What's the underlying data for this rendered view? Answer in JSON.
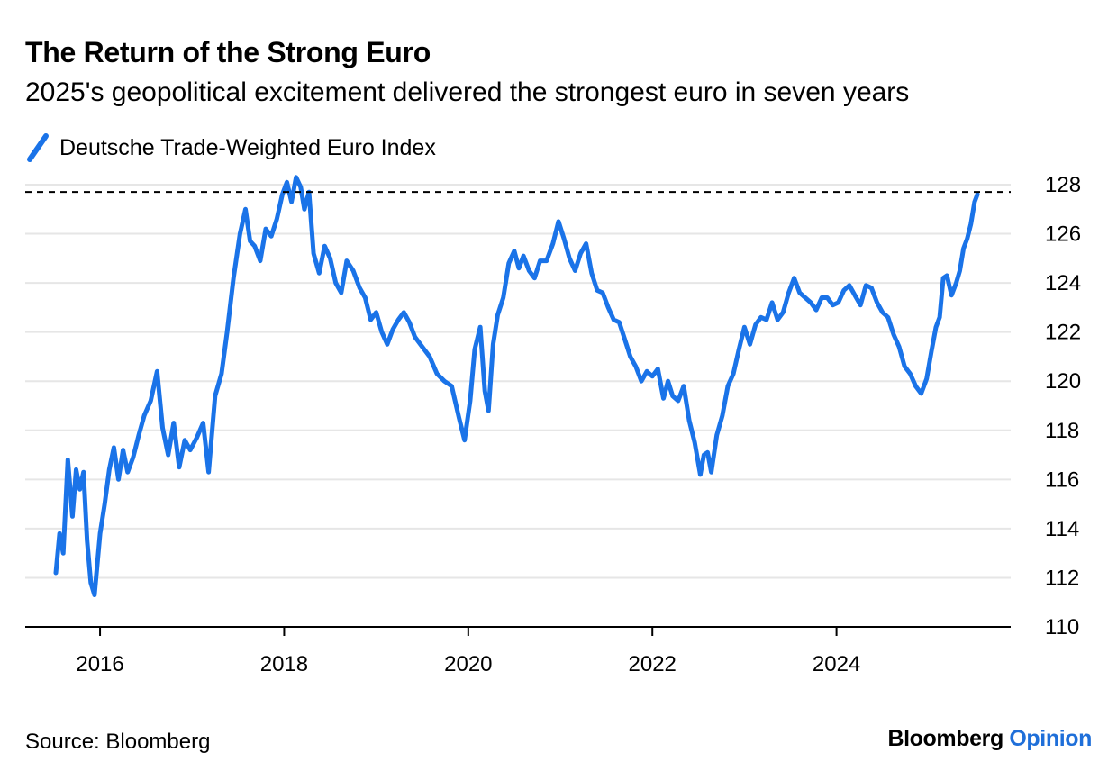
{
  "title": "The Return of the Strong Euro",
  "subtitle": "2025's geopolitical excitement delivered the strongest euro in seven years",
  "legend": {
    "label": "Deutsche Trade-Weighted Euro Index"
  },
  "source": "Source: Bloomberg",
  "brand": {
    "name": "Bloomberg",
    "suffix": "Opinion"
  },
  "colors": {
    "series": "#1a73e8",
    "brand_accent": "#1f6fd9",
    "reference_line": "#000000",
    "grid": "#e6e6e6"
  },
  "chart_data": {
    "type": "line",
    "title": "The Return of the Strong Euro",
    "subtitle": "2025's geopolitical excitement delivered the strongest euro in seven years",
    "xlabel": "",
    "ylabel": "",
    "xlim": [
      2015.52,
      2025.55
    ],
    "ylim": [
      110,
      128
    ],
    "x_ticks": [
      2016,
      2018,
      2020,
      2022,
      2024
    ],
    "x_tick_labels": [
      "2016",
      "2018",
      "2020",
      "2022",
      "2024"
    ],
    "y_ticks": [
      110,
      112,
      114,
      116,
      118,
      120,
      122,
      124,
      126,
      128
    ],
    "y_tick_labels": [
      "110",
      "112",
      "114",
      "116",
      "118",
      "120",
      "122",
      "124",
      "126",
      "128"
    ],
    "grid": "horizontal",
    "legend_position": "top-left",
    "reference_lines": [
      {
        "y": 127.7,
        "style": "dashed"
      }
    ],
    "series": [
      {
        "name": "Deutsche Trade-Weighted Euro Index",
        "x": [
          2015.52,
          2015.56,
          2015.6,
          2015.65,
          2015.7,
          2015.74,
          2015.78,
          2015.82,
          2015.86,
          2015.9,
          2015.94,
          2016.0,
          2016.05,
          2016.1,
          2016.15,
          2016.2,
          2016.25,
          2016.3,
          2016.36,
          2016.42,
          2016.48,
          2016.55,
          2016.62,
          2016.68,
          2016.74,
          2016.8,
          2016.86,
          2016.92,
          2016.98,
          2017.05,
          2017.12,
          2017.18,
          2017.25,
          2017.32,
          2017.38,
          2017.45,
          2017.52,
          2017.58,
          2017.63,
          2017.68,
          2017.74,
          2017.8,
          2017.86,
          2017.92,
          2017.98,
          2018.03,
          2018.08,
          2018.13,
          2018.18,
          2018.22,
          2018.27,
          2018.32,
          2018.38,
          2018.44,
          2018.5,
          2018.56,
          2018.62,
          2018.68,
          2018.75,
          2018.82,
          2018.88,
          2018.94,
          2019.0,
          2019.06,
          2019.12,
          2019.18,
          2019.24,
          2019.3,
          2019.36,
          2019.42,
          2019.5,
          2019.58,
          2019.66,
          2019.74,
          2019.82,
          2019.9,
          2019.96,
          2020.02,
          2020.07,
          2020.13,
          2020.18,
          2020.22,
          2020.27,
          2020.32,
          2020.38,
          2020.44,
          2020.5,
          2020.55,
          2020.6,
          2020.66,
          2020.72,
          2020.78,
          2020.85,
          2020.92,
          2020.98,
          2021.04,
          2021.1,
          2021.16,
          2021.22,
          2021.28,
          2021.34,
          2021.4,
          2021.46,
          2021.52,
          2021.58,
          2021.64,
          2021.7,
          2021.76,
          2021.82,
          2021.88,
          2021.94,
          2022.0,
          2022.06,
          2022.12,
          2022.17,
          2022.22,
          2022.28,
          2022.34,
          2022.4,
          2022.46,
          2022.52,
          2022.56,
          2022.6,
          2022.64,
          2022.7,
          2022.76,
          2022.82,
          2022.88,
          2022.94,
          2023.0,
          2023.06,
          2023.12,
          2023.18,
          2023.24,
          2023.3,
          2023.36,
          2023.42,
          2023.48,
          2023.54,
          2023.6,
          2023.66,
          2023.72,
          2023.78,
          2023.84,
          2023.9,
          2023.96,
          2024.02,
          2024.08,
          2024.14,
          2024.2,
          2024.26,
          2024.32,
          2024.38,
          2024.44,
          2024.5,
          2024.56,
          2024.62,
          2024.68,
          2024.74,
          2024.8,
          2024.86,
          2024.92,
          2024.98,
          2025.03,
          2025.08,
          2025.12,
          2025.16,
          2025.2,
          2025.25,
          2025.3,
          2025.34,
          2025.38,
          2025.42,
          2025.46,
          2025.5,
          2025.53
        ],
        "values": [
          112.2,
          113.8,
          113.0,
          116.8,
          114.5,
          116.4,
          115.6,
          116.3,
          113.5,
          111.8,
          111.3,
          113.8,
          115.0,
          116.4,
          117.3,
          116.0,
          117.2,
          116.3,
          116.9,
          117.8,
          118.6,
          119.2,
          120.4,
          118.1,
          117.0,
          118.3,
          116.5,
          117.6,
          117.2,
          117.7,
          118.3,
          116.3,
          119.4,
          120.3,
          122.0,
          124.2,
          126.0,
          127.0,
          125.7,
          125.5,
          124.9,
          126.2,
          125.9,
          126.6,
          127.6,
          128.1,
          127.3,
          128.3,
          127.9,
          127.0,
          127.7,
          125.2,
          124.4,
          125.5,
          125.0,
          124.0,
          123.6,
          124.9,
          124.5,
          123.8,
          123.4,
          122.5,
          122.8,
          122.0,
          121.5,
          122.1,
          122.5,
          122.8,
          122.4,
          121.8,
          121.4,
          121.0,
          120.3,
          120.0,
          119.8,
          118.5,
          117.6,
          119.2,
          121.3,
          122.2,
          119.6,
          118.8,
          121.5,
          122.7,
          123.4,
          124.8,
          125.3,
          124.6,
          125.1,
          124.5,
          124.2,
          124.9,
          124.9,
          125.6,
          126.5,
          125.8,
          125.0,
          124.5,
          125.2,
          125.6,
          124.4,
          123.7,
          123.6,
          123.0,
          122.5,
          122.4,
          121.7,
          121.0,
          120.6,
          120.0,
          120.4,
          120.2,
          120.5,
          119.3,
          120.0,
          119.4,
          119.2,
          119.8,
          118.4,
          117.5,
          116.2,
          117.0,
          117.1,
          116.3,
          117.8,
          118.6,
          119.8,
          120.3,
          121.3,
          122.2,
          121.5,
          122.3,
          122.6,
          122.5,
          123.2,
          122.5,
          122.8,
          123.6,
          124.2,
          123.6,
          123.4,
          123.2,
          122.9,
          123.4,
          123.4,
          123.1,
          123.2,
          123.7,
          123.9,
          123.5,
          123.1,
          123.9,
          123.8,
          123.2,
          122.8,
          122.6,
          121.9,
          121.4,
          120.6,
          120.3,
          119.8,
          119.5,
          120.1,
          121.2,
          122.2,
          122.6,
          124.2,
          124.3,
          123.5,
          124.0,
          124.5,
          125.4,
          125.8,
          126.4,
          127.3,
          127.6
        ]
      }
    ]
  }
}
